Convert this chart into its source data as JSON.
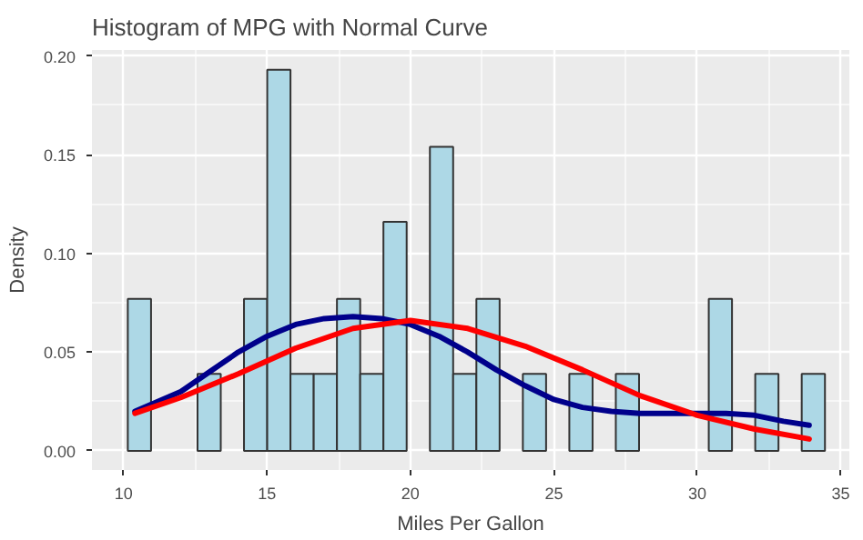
{
  "chart_data": {
    "type": "histogram",
    "title": "Histogram of MPG with Normal Curve",
    "xlabel": "Miles Per Gallon",
    "ylabel": "Density",
    "bins": [
      10.15,
      10.96,
      11.77,
      12.58,
      13.39,
      14.2,
      15.01,
      15.82,
      16.63,
      17.44,
      18.25,
      19.06,
      19.87,
      20.68,
      21.49,
      22.3,
      23.11,
      23.92,
      24.73,
      25.54,
      26.35,
      27.16,
      27.97,
      28.78,
      29.59,
      30.4,
      31.21,
      32.02,
      32.83,
      33.64,
      34.45
    ],
    "values": [
      0.077,
      0,
      0,
      0.039,
      0,
      0.077,
      0.193,
      0.039,
      0.039,
      0.077,
      0.039,
      0.116,
      0,
      0.154,
      0.039,
      0.077,
      0,
      0.039,
      0,
      0.039,
      0,
      0.039,
      0,
      0,
      0,
      0.077,
      0,
      0.039,
      0,
      0.039
    ],
    "color": "#add8e6",
    "series": [
      {
        "type": "line",
        "color": "#00008b",
        "x": [
          10.4,
          12,
          13,
          14,
          15,
          16,
          17,
          18,
          19,
          20,
          21,
          22,
          23,
          24,
          25,
          26,
          27,
          28,
          29,
          30,
          31,
          32,
          33,
          33.9
        ],
        "values": [
          0.02,
          0.03,
          0.04,
          0.05,
          0.058,
          0.064,
          0.067,
          0.068,
          0.067,
          0.064,
          0.058,
          0.05,
          0.041,
          0.033,
          0.026,
          0.022,
          0.02,
          0.019,
          0.019,
          0.019,
          0.019,
          0.018,
          0.015,
          0.013
        ]
      },
      {
        "type": "line",
        "color": "#ff0000",
        "x": [
          10.4,
          12,
          14,
          16,
          18,
          20,
          22,
          24,
          26,
          28,
          30,
          32,
          33.9
        ],
        "values": [
          0.019,
          0.027,
          0.039,
          0.052,
          0.062,
          0.066,
          0.062,
          0.053,
          0.041,
          0.028,
          0.018,
          0.011,
          0.006
        ]
      }
    ],
    "xlim": [
      8.9,
      35.3
    ],
    "ylim": [
      -0.0097,
      0.203
    ],
    "xticks": [
      10,
      15,
      20,
      25,
      30,
      35
    ],
    "yticks": [
      {
        "value": 0,
        "label": "0.00"
      },
      {
        "value": 0.05,
        "label": "0.05"
      },
      {
        "value": 0.1,
        "label": "0.10"
      },
      {
        "value": 0.15,
        "label": "0.15"
      },
      {
        "value": 0.2,
        "label": "0.20"
      }
    ],
    "grid": true
  }
}
